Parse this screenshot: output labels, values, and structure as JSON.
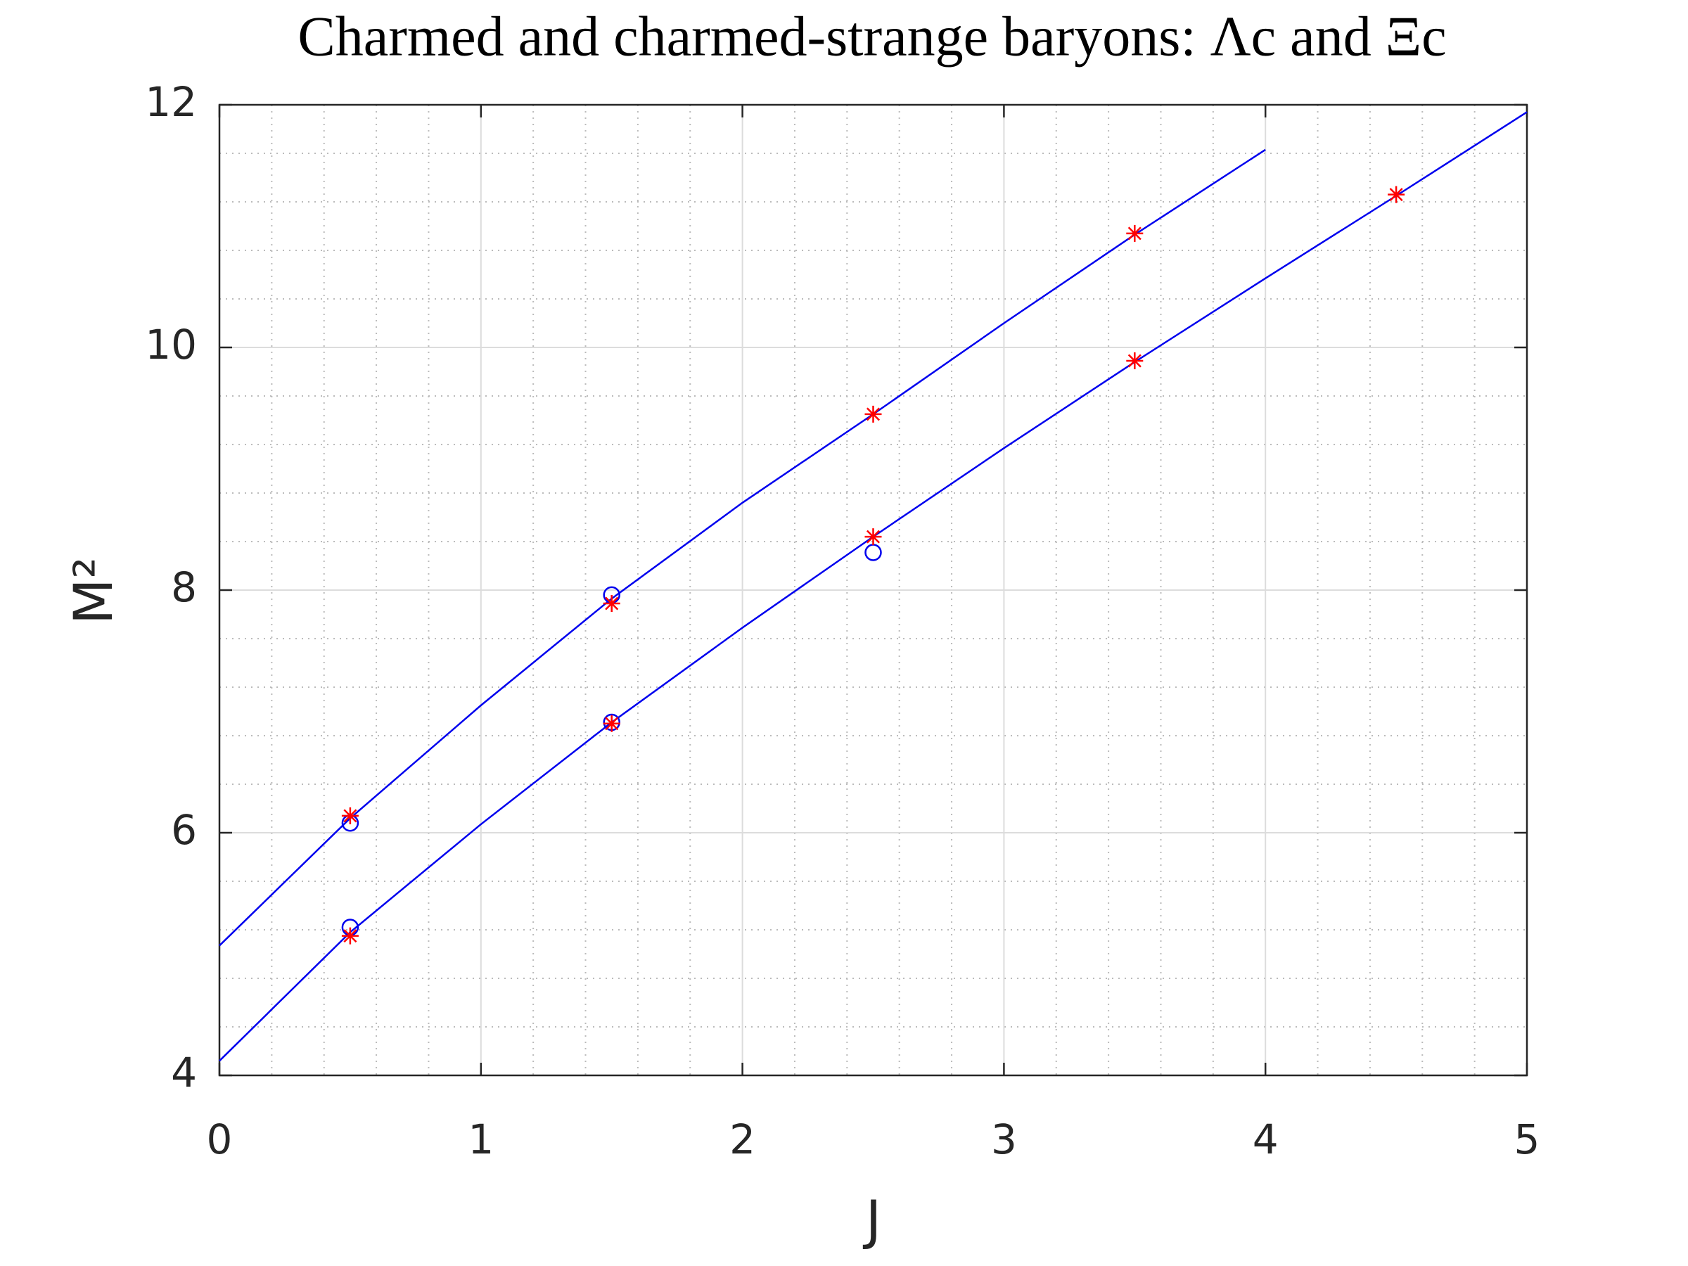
{
  "chart_data": {
    "type": "line",
    "title": "Charmed and charmed-strange baryons: Λc and Ξc",
    "xlabel": "J",
    "ylabel": "M²",
    "xlim": [
      0,
      5
    ],
    "ylim": [
      4,
      12
    ],
    "xticks": [
      0,
      1,
      2,
      3,
      4,
      5
    ],
    "yticks": [
      4,
      6,
      8,
      10,
      12
    ],
    "grid": true,
    "minor_grid": true,
    "series": [
      {
        "kind": "line",
        "color": "#0000ee",
        "x": [
          0,
          0.5,
          1,
          1.5,
          2,
          2.5,
          3,
          3.5,
          4
        ],
        "values": [
          5.07,
          6.12,
          7.05,
          7.93,
          8.72,
          9.45,
          10.2,
          10.93,
          11.63
        ]
      },
      {
        "kind": "line",
        "color": "#0000ee",
        "x": [
          0,
          0.5,
          1,
          1.5,
          2,
          2.5,
          3,
          3.5,
          4,
          4.5,
          5
        ],
        "values": [
          4.12,
          5.18,
          6.07,
          6.91,
          7.69,
          8.44,
          9.17,
          9.88,
          10.57,
          11.25,
          11.94
        ]
      },
      {
        "kind": "marker",
        "marker": "circle",
        "color": "#0000ee",
        "x": [
          0.5,
          1.5,
          0.5,
          1.5,
          2.5
        ],
        "values": [
          6.08,
          7.96,
          5.22,
          6.91,
          8.31
        ]
      },
      {
        "kind": "marker",
        "marker": "star",
        "color": "#ff0000",
        "x": [
          0.5,
          1.5,
          2.5,
          3.5,
          0.5,
          1.5,
          2.5,
          3.5,
          4.5
        ],
        "values": [
          6.14,
          7.89,
          9.45,
          10.94,
          5.15,
          6.9,
          8.44,
          9.89,
          11.26
        ]
      }
    ]
  }
}
